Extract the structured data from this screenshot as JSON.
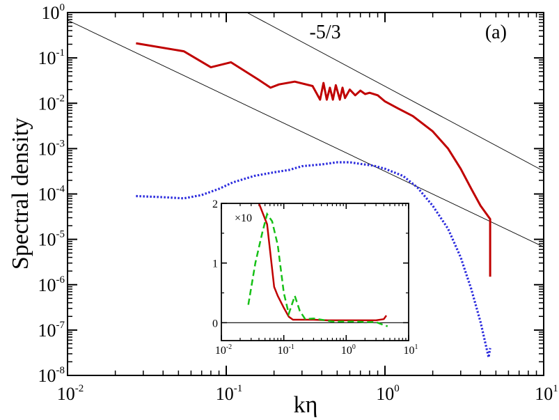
{
  "chart_data": {
    "type": "line",
    "xlabel": "kη",
    "ylabel": "Spectral density",
    "xscale": "log",
    "yscale": "log",
    "xlim": [
      0.01,
      10
    ],
    "ylim": [
      1e-08,
      1
    ],
    "x_tick_labels": [
      {
        "base": "10",
        "exp": "-2",
        "value": 0.01
      },
      {
        "base": "10",
        "exp": "-1",
        "value": 0.1
      },
      {
        "base": "10",
        "exp": "0",
        "value": 1
      },
      {
        "base": "10",
        "exp": "1",
        "value": 10
      }
    ],
    "y_tick_labels": [
      {
        "base": "10",
        "exp": "0",
        "value": 1
      },
      {
        "base": "10",
        "exp": "-1",
        "value": 0.1
      },
      {
        "base": "10",
        "exp": "-2",
        "value": 0.01
      },
      {
        "base": "10",
        "exp": "-3",
        "value": 0.001
      },
      {
        "base": "10",
        "exp": "-4",
        "value": 0.0001
      },
      {
        "base": "10",
        "exp": "-5",
        "value": 1e-05
      },
      {
        "base": "10",
        "exp": "-6",
        "value": 1e-06
      },
      {
        "base": "10",
        "exp": "-7",
        "value": 1e-07
      },
      {
        "base": "10",
        "exp": "-8",
        "value": 1e-08
      }
    ],
    "annotations": [
      {
        "text": "-5/3",
        "x": 0.42,
        "y": 0.27
      },
      {
        "text": "(a)",
        "x": 5.0,
        "y": 0.27
      }
    ],
    "series": [
      {
        "name": "red-solid",
        "color": "#c00000",
        "style": "solid",
        "x": [
          0.027,
          0.054,
          0.08,
          0.107,
          0.16,
          0.19,
          0.215,
          0.27,
          0.35,
          0.39,
          0.41,
          0.43,
          0.45,
          0.47,
          0.49,
          0.52,
          0.54,
          0.56,
          0.6,
          0.65,
          0.7,
          0.75,
          0.8,
          0.9,
          1.0,
          1.2,
          1.5,
          2.0,
          2.5,
          3.0,
          3.5,
          4.0,
          4.6,
          4.6
        ],
        "y": [
          0.21,
          0.14,
          0.062,
          0.08,
          0.033,
          0.022,
          0.026,
          0.03,
          0.024,
          0.012,
          0.028,
          0.012,
          0.022,
          0.012,
          0.025,
          0.012,
          0.022,
          0.013,
          0.02,
          0.015,
          0.019,
          0.016,
          0.017,
          0.015,
          0.011,
          0.0078,
          0.0052,
          0.0024,
          0.001,
          0.00036,
          0.00013,
          5.5e-05,
          2.8e-05,
          1.5e-06
        ]
      },
      {
        "name": "blue-dotted",
        "color": "#2b2bdd",
        "style": "dotted",
        "x": [
          0.027,
          0.04,
          0.054,
          0.07,
          0.09,
          0.11,
          0.15,
          0.2,
          0.25,
          0.3,
          0.4,
          0.5,
          0.6,
          0.7,
          0.85,
          1.0,
          1.3,
          1.6,
          2.0,
          2.5,
          3.0,
          3.5,
          4.0,
          4.5,
          4.6
        ],
        "y": [
          9e-05,
          8.5e-05,
          8e-05,
          9.5e-05,
          0.00013,
          0.00018,
          0.00025,
          0.0003,
          0.00034,
          0.00041,
          0.00045,
          0.0005,
          0.0005,
          0.00046,
          0.00042,
          0.00036,
          0.00025,
          0.00014,
          5.5e-05,
          1.7e-05,
          4e-06,
          8e-07,
          1.5e-07,
          2.5e-08,
          4e-08
        ]
      }
    ],
    "reference_lines": [
      {
        "name": "upper -5/3 line",
        "slope": -1.6667,
        "x": [
          0.135,
          10
        ],
        "y": [
          1.0,
          0.00032
        ]
      },
      {
        "name": "lower -5/3 line",
        "slope": -1.6667,
        "x": [
          0.01,
          10
        ],
        "y": [
          0.68,
          6.8e-06
        ]
      }
    ],
    "inset": {
      "xscale": "log",
      "xlim": [
        0.01,
        10
      ],
      "ylim": [
        -0.3,
        2
      ],
      "y_ticks": [
        0,
        1,
        2
      ],
      "y_tick_labels": [
        "0",
        "1",
        "2"
      ],
      "x_tick_labels": [
        {
          "base": "10",
          "exp": "-2",
          "value": 0.01
        },
        {
          "base": "10",
          "exp": "-1",
          "value": 0.1
        },
        {
          "base": "10",
          "exp": "0",
          "value": 1
        },
        {
          "base": "10",
          "exp": "1",
          "value": 10
        }
      ],
      "multiplier_label": "×10",
      "series": [
        {
          "name": "inset-red-solid",
          "color": "#c00000",
          "style": "solid",
          "x": [
            0.04,
            0.054,
            0.07,
            0.08,
            0.1,
            0.12,
            0.14,
            0.2,
            0.3,
            0.5,
            1.0,
            2.0,
            3.0,
            4.0,
            4.4
          ],
          "y": [
            2.0,
            1.65,
            0.6,
            0.45,
            0.25,
            0.1,
            0.05,
            0.05,
            0.05,
            0.04,
            0.04,
            0.04,
            0.04,
            0.06,
            0.12
          ]
        },
        {
          "name": "inset-green-dashed",
          "color": "#16c016",
          "style": "dashed",
          "x": [
            0.027,
            0.035,
            0.045,
            0.054,
            0.065,
            0.08,
            0.1,
            0.12,
            0.15,
            0.18,
            0.22,
            0.3,
            0.4,
            0.6,
            1.0,
            1.5,
            2.0,
            3.0,
            4.0,
            4.6
          ],
          "y": [
            0.3,
            1.0,
            1.5,
            1.82,
            1.7,
            1.3,
            0.5,
            0.15,
            0.45,
            0.2,
            0.06,
            0.07,
            0.05,
            0.02,
            0.02,
            0.02,
            0.01,
            0.01,
            -0.04,
            -0.06
          ]
        }
      ]
    }
  }
}
